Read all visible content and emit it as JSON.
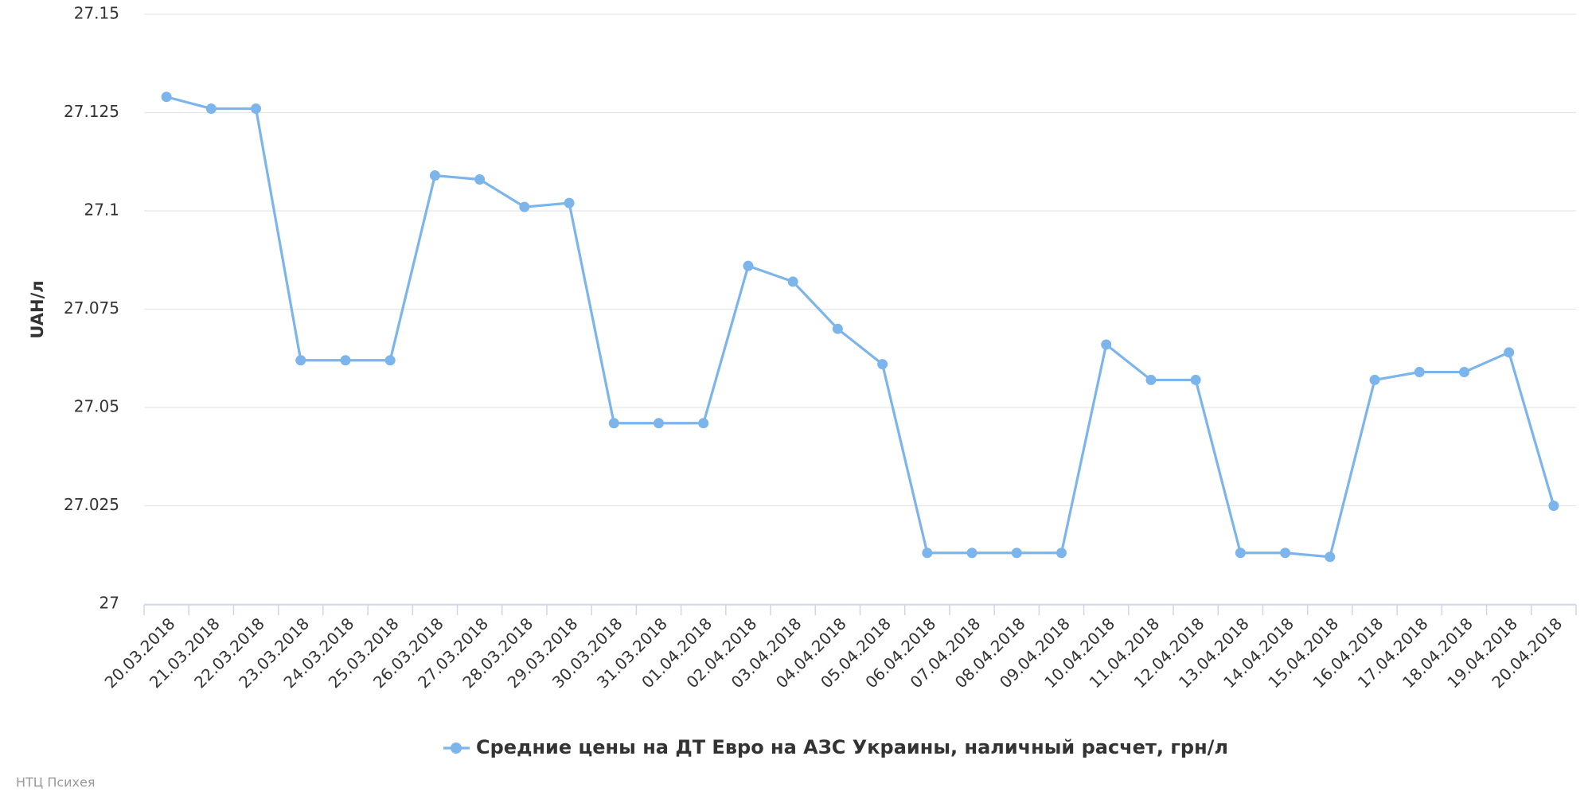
{
  "chart_data": {
    "type": "line",
    "y_label": "UAH/л",
    "categories": [
      "20.03.2018",
      "21.03.2018",
      "22.03.2018",
      "23.03.2018",
      "24.03.2018",
      "25.03.2018",
      "26.03.2018",
      "27.03.2018",
      "28.03.2018",
      "29.03.2018",
      "30.03.2018",
      "31.03.2018",
      "01.04.2018",
      "02.04.2018",
      "03.04.2018",
      "04.04.2018",
      "05.04.2018",
      "06.04.2018",
      "07.04.2018",
      "08.04.2018",
      "09.04.2018",
      "10.04.2018",
      "11.04.2018",
      "12.04.2018",
      "13.04.2018",
      "14.04.2018",
      "15.04.2018",
      "16.04.2018",
      "17.04.2018",
      "18.04.2018",
      "19.04.2018",
      "20.04.2018"
    ],
    "series": [
      {
        "name": "Средние цены на ДТ Евро на АЗС Украины, наличный расчет, грн/л",
        "color": "#7cb5ec",
        "values": [
          27.129,
          27.126,
          27.126,
          27.062,
          27.062,
          27.062,
          27.109,
          27.108,
          27.101,
          27.102,
          27.046,
          27.046,
          27.046,
          27.086,
          27.082,
          27.07,
          27.061,
          27.013,
          27.013,
          27.013,
          27.013,
          27.066,
          27.057,
          27.057,
          27.013,
          27.013,
          27.012,
          27.057,
          27.059,
          27.059,
          27.064,
          27.025
        ]
      }
    ],
    "ylim": [
      27,
      27.15
    ],
    "yticks": [
      27,
      27.025,
      27.05,
      27.075,
      27.1,
      27.125,
      27.15
    ],
    "grid": true,
    "credits": "НТЦ Психея"
  }
}
